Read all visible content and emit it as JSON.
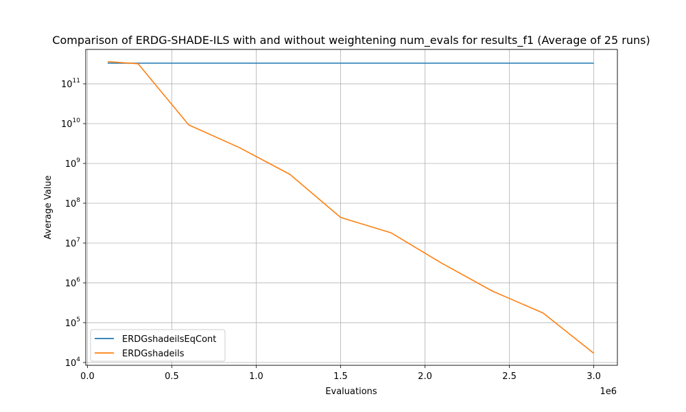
{
  "chart_data": {
    "type": "line",
    "title": "Comparison of ERDG-SHADE-ILS  with and without weightening num_evals for results_f1 (Average of 25 runs)",
    "xlabel": "Evaluations",
    "ylabel": "Average Value",
    "x_offset_label": "1e6",
    "xlim": [
      -0.01,
      3.14
    ],
    "ylim": [
      8500,
      730000000000
    ],
    "yscale": "log",
    "grid": true,
    "legend_position": "lower-left",
    "x_ticks": [
      {
        "value": 0.0,
        "label": "0.0"
      },
      {
        "value": 0.5,
        "label": "0.5"
      },
      {
        "value": 1.0,
        "label": "1.0"
      },
      {
        "value": 1.5,
        "label": "1.5"
      },
      {
        "value": 2.0,
        "label": "2.0"
      },
      {
        "value": 2.5,
        "label": "2.5"
      },
      {
        "value": 3.0,
        "label": "3.0"
      }
    ],
    "y_ticks": [
      {
        "value": 10000,
        "base": "10",
        "exp": "4"
      },
      {
        "value": 100000,
        "base": "10",
        "exp": "5"
      },
      {
        "value": 1000000,
        "base": "10",
        "exp": "6"
      },
      {
        "value": 10000000,
        "base": "10",
        "exp": "7"
      },
      {
        "value": 100000000,
        "base": "10",
        "exp": "8"
      },
      {
        "value": 1000000000,
        "base": "10",
        "exp": "9"
      },
      {
        "value": 10000000000,
        "base": "10",
        "exp": "10"
      },
      {
        "value": 100000000000,
        "base": "10",
        "exp": "11"
      }
    ],
    "series": [
      {
        "name": "ERDGshadeilsEqCont",
        "color": "#1f77b4",
        "x": [
          0.12,
          3.0
        ],
        "y": [
          330000000000,
          330000000000
        ]
      },
      {
        "name": "ERDGshadeils",
        "color": "#ff7f0e",
        "x": [
          0.12,
          0.3,
          0.6,
          0.9,
          1.2,
          1.5,
          1.8,
          2.1,
          2.4,
          2.7,
          3.0
        ],
        "y": [
          360000000000,
          320000000000,
          9300000000,
          2500000000,
          530000000,
          44000000,
          18000000,
          3100000,
          620000,
          175000,
          17000
        ]
      }
    ]
  }
}
